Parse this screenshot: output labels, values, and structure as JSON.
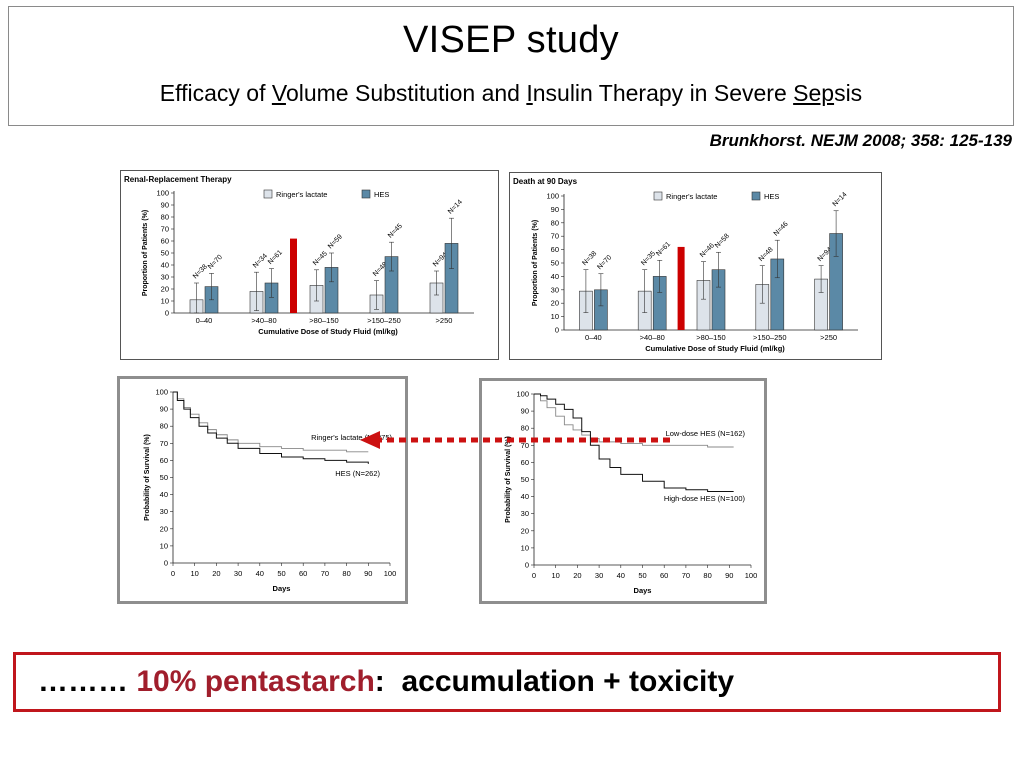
{
  "slide": {
    "title": "VISEP study",
    "subtitle": {
      "p1": "Efficacy of ",
      "u1": "V",
      "p2": "olume Substitution and ",
      "u2": "I",
      "p3": "nsulin Therapy in Severe ",
      "u3": "Sep",
      "p4": "sis"
    },
    "citation": "Brunkhorst. NEJM 2008; 358: 125-139",
    "conclusion": {
      "dots": "……… ",
      "highlight": "10% pentastarch",
      "colon": ":",
      "rest": "accumulation + toxicity"
    }
  },
  "colors": {
    "ringer": "#dde3ea",
    "hes": "#5b89a6",
    "red_marker": "#cc0000",
    "highlight_text": "#a01e2c",
    "conclusion_border": "#c0161c",
    "arrow": "#cc1111"
  },
  "chart_data": [
    {
      "type": "bar",
      "title": "Renal-Replacement Therapy",
      "xlabel": "Cumulative Dose of Study Fluid (ml/kg)",
      "ylabel": "Proportion of Patients (%)",
      "ylim": [
        0,
        100
      ],
      "yticks": [
        0,
        10,
        20,
        30,
        40,
        50,
        60,
        70,
        80,
        90,
        100
      ],
      "categories": [
        "0–40",
        ">40–80",
        ">80–150",
        ">150–250",
        ">250"
      ],
      "legend": [
        "Ringer's lactate",
        "HES"
      ],
      "series": [
        {
          "name": "Ringer's lactate",
          "values": [
            11,
            18,
            23,
            15,
            25
          ],
          "err": [
            14,
            16,
            13,
            12,
            10
          ],
          "n": [
            "N=38",
            "N=34",
            "N=45",
            "N=48",
            "N=94"
          ]
        },
        {
          "name": "HES",
          "values": [
            22,
            25,
            38,
            47,
            58
          ],
          "err": [
            11,
            12,
            12,
            12,
            21
          ],
          "n": [
            "N=70",
            "N=61",
            "N=59",
            "N=45",
            "N=14"
          ]
        }
      ]
    },
    {
      "type": "bar",
      "title": "Death at 90 Days",
      "xlabel": "Cumulative Dose of Study Fluid (ml/kg)",
      "ylabel": "Proportion of Patients (%)",
      "ylim": [
        0,
        100
      ],
      "yticks": [
        0,
        10,
        20,
        30,
        40,
        50,
        60,
        70,
        80,
        90,
        100
      ],
      "categories": [
        "0–40",
        ">40–80",
        ">80–150",
        ">150–250",
        ">250"
      ],
      "legend": [
        "Ringer's lactate",
        "HES"
      ],
      "series": [
        {
          "name": "Ringer's lactate",
          "values": [
            29,
            29,
            37,
            34,
            38
          ],
          "err": [
            16,
            16,
            14,
            14,
            10
          ],
          "n": [
            "N=38",
            "N=35",
            "N=46",
            "N=48",
            "N=94"
          ]
        },
        {
          "name": "HES",
          "values": [
            30,
            40,
            45,
            53,
            72
          ],
          "err": [
            12,
            12,
            13,
            14,
            17
          ],
          "n": [
            "N=70",
            "N=61",
            "N=58",
            "N=46",
            "N=14"
          ]
        }
      ]
    },
    {
      "type": "line",
      "xlabel": "Days",
      "ylabel": "Probability of Survival (%)",
      "xlim": [
        0,
        100
      ],
      "ylim": [
        0,
        100
      ],
      "xticks": [
        0,
        10,
        20,
        30,
        40,
        50,
        60,
        70,
        80,
        90,
        100
      ],
      "yticks": [
        0,
        10,
        20,
        30,
        40,
        50,
        60,
        70,
        80,
        90,
        100
      ],
      "series": [
        {
          "name": "Ringer's lactate (N=275)",
          "x": [
            0,
            2,
            5,
            8,
            12,
            16,
            20,
            25,
            30,
            40,
            50,
            60,
            70,
            80,
            90
          ],
          "y": [
            100,
            96,
            91,
            87,
            82,
            78,
            75,
            72,
            70,
            68,
            67,
            66,
            66,
            65,
            65
          ]
        },
        {
          "name": "HES (N=262)",
          "x": [
            0,
            2,
            5,
            8,
            12,
            16,
            20,
            25,
            30,
            40,
            50,
            60,
            70,
            80,
            90
          ],
          "y": [
            100,
            95,
            90,
            85,
            80,
            76,
            73,
            70,
            67,
            64,
            62,
            61,
            60,
            59,
            58
          ]
        }
      ]
    },
    {
      "type": "line",
      "xlabel": "Days",
      "ylabel": "Probability of Survival (%)",
      "xlim": [
        0,
        100
      ],
      "ylim": [
        0,
        100
      ],
      "xticks": [
        0,
        10,
        20,
        30,
        40,
        50,
        60,
        70,
        80,
        90,
        100
      ],
      "yticks": [
        0,
        10,
        20,
        30,
        40,
        50,
        60,
        70,
        80,
        90,
        100
      ],
      "series": [
        {
          "name": "Low-dose HES (N=162)",
          "x": [
            0,
            3,
            6,
            10,
            14,
            18,
            22,
            26,
            30,
            40,
            50,
            60,
            70,
            80,
            92
          ],
          "y": [
            100,
            96,
            92,
            87,
            82,
            79,
            76,
            74,
            72,
            71,
            70,
            70,
            70,
            69,
            69
          ]
        },
        {
          "name": "High-dose HES (N=100)",
          "x": [
            0,
            3,
            6,
            10,
            14,
            18,
            22,
            26,
            30,
            35,
            40,
            50,
            60,
            70,
            80,
            92
          ],
          "y": [
            100,
            99,
            97,
            94,
            91,
            86,
            78,
            70,
            62,
            57,
            53,
            49,
            45,
            44,
            43,
            43
          ]
        }
      ]
    }
  ]
}
